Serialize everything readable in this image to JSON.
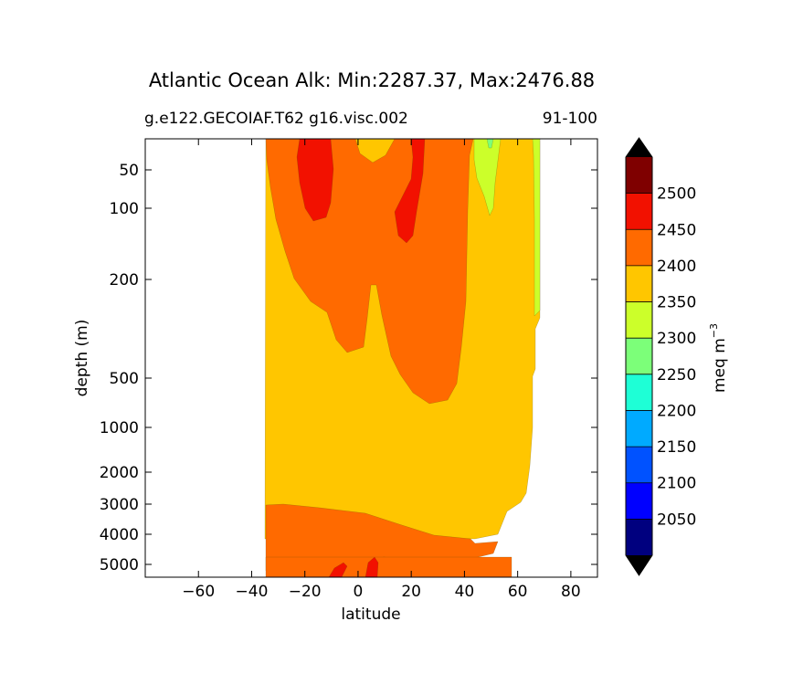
{
  "chart_data": {
    "type": "contour",
    "title": "Atlantic Ocean Alk: Min:2287.37, Max:2476.88",
    "subtitle_left": "g.e122.GECOIAF.T62 g16.visc.002",
    "subtitle_right": "91-100",
    "xlabel": "latitude",
    "ylabel": "depth (m)",
    "xlim": [
      -80,
      90
    ],
    "x_ticks": [
      -60,
      -40,
      -20,
      0,
      20,
      40,
      60,
      80
    ],
    "x_tick_labels": [
      "−60",
      "−40",
      "−20",
      "0",
      "20",
      "40",
      "60",
      "80"
    ],
    "y_ticks": [
      50,
      100,
      200,
      500,
      1000,
      2000,
      3000,
      4000,
      5000
    ],
    "y_tick_labels": [
      "50",
      "100",
      "200",
      "500",
      "1000",
      "2000",
      "3000",
      "4000",
      "5000"
    ],
    "y_inverted": true,
    "y_scale": "nonlinear (model depth levels)",
    "grid": false,
    "colorbar": {
      "label": "meq m",
      "label_exponent": "−3",
      "levels": [
        2000,
        2050,
        2100,
        2150,
        2200,
        2250,
        2300,
        2350,
        2400,
        2450,
        2500,
        2550
      ],
      "tick_labels": [
        "2050",
        "2100",
        "2150",
        "2200",
        "2250",
        "2300",
        "2350",
        "2400",
        "2450",
        "2500"
      ],
      "colors": [
        "#00007f",
        "#0000ff",
        "#0052ff",
        "#00aaff",
        "#1effd6",
        "#7cff79",
        "#ccff2a",
        "#ffc600",
        "#ff6a00",
        "#f21100",
        "#7f0000"
      ],
      "extend": "both",
      "under_color": "#000000",
      "over_color": "#000000"
    },
    "regions": [
      {
        "level": "2350-2400",
        "description": "background water column from about 35S to 68N, surface to bottom"
      },
      {
        "level": "2400-2450",
        "description": "upper ocean tongue from 33S to 42N, 0 to ~700 m"
      },
      {
        "level": "2400-2450",
        "description": "abyssal layer below ~3000 m from 35S to 52N"
      },
      {
        "level": "2450-2500",
        "description": "surface maximum near 30S-12S"
      },
      {
        "level": "2450-2500",
        "description": "subsurface maximum near 15N-25N"
      },
      {
        "level": "2450-2500",
        "description": "bottom patches near 5S and 5N"
      },
      {
        "level": "2300-2350",
        "description": "northern surface low near 44N-52N and along 66N-68N"
      }
    ]
  }
}
